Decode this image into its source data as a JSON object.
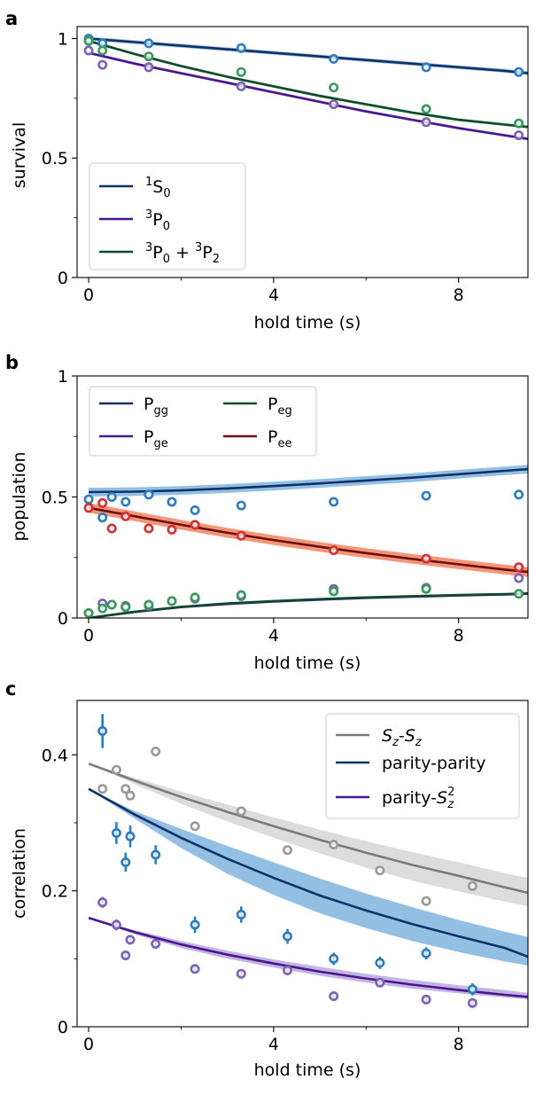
{
  "colors": {
    "S0": "#10306a",
    "P0": "#4b1590",
    "P0P2": "#0c4a2c",
    "Pgg": "#10306a",
    "Pge": "#4b1590",
    "Peg": "#0c4a2c",
    "Pee": "#6b0f10",
    "Pgg_marker": "#2e7cbf",
    "Pge_marker": "#7b63b3",
    "Peg_marker": "#3a9a5a",
    "Pee_marker": "#d63030",
    "S0_marker": "#2e7cbf",
    "P0_marker": "#7b63b3",
    "P0P2_marker": "#3a9a5a",
    "SzSz": "#7b7b7b",
    "pp": "#10306a",
    "pS2": "#4b1590",
    "SzSz_marker": "#9a9a9a",
    "pp_marker": "#2e7cbf",
    "pS2_marker": "#7b63b3",
    "Pee_band": "#f3825f",
    "Pgg_band": "#7fb4dd",
    "SzSz_band": "#d6d6d6",
    "pp_band": "#7fb4dd",
    "pS2_band": "#b8a8dc"
  },
  "chart_data": [
    {
      "panel_label": "a",
      "type": "line",
      "xlabel": "hold time (s)",
      "ylabel": "survival",
      "xlim": [
        -0.25,
        9.5
      ],
      "ylim": [
        0,
        1.05
      ],
      "xticks": [
        0,
        4,
        8
      ],
      "xticklabels": [
        "0",
        "4",
        "8"
      ],
      "xminor": [
        2,
        6
      ],
      "yticks": [
        0,
        0.5,
        1
      ],
      "yticklabels": [
        "0",
        "0.5",
        "1"
      ],
      "yminor": [
        0.25,
        0.75
      ],
      "legend": {
        "placement": "lower-left",
        "columns": 1
      },
      "series": [
        {
          "key": "S0",
          "legend_sup": "1",
          "legend_base": "S",
          "legend_sub": "0",
          "fit": {
            "x": [
              0,
              1,
              2,
              3,
              4,
              5,
              6,
              7,
              8,
              9,
              9.5
            ],
            "y": [
              1.0,
              0.985,
              0.97,
              0.955,
              0.94,
              0.925,
              0.91,
              0.895,
              0.88,
              0.865,
              0.855
            ]
          },
          "band": 0.008,
          "points": {
            "x": [
              0,
              0.3,
              1.3,
              3.3,
              5.3,
              7.3,
              9.3
            ],
            "y": [
              1.0,
              0.98,
              0.98,
              0.96,
              0.915,
              0.88,
              0.86
            ]
          }
        },
        {
          "key": "P0",
          "legend_sup": "3",
          "legend_base": "P",
          "legend_sub": "0",
          "fit": {
            "x": [
              0,
              1,
              2,
              3,
              4,
              5,
              6,
              7,
              8,
              9,
              9.5
            ],
            "y": [
              0.94,
              0.895,
              0.855,
              0.815,
              0.775,
              0.735,
              0.695,
              0.66,
              0.625,
              0.595,
              0.58
            ]
          },
          "band": 0.006,
          "points": {
            "x": [
              0,
              0.3,
              1.3,
              3.3,
              5.3,
              7.3,
              9.3
            ],
            "y": [
              0.95,
              0.89,
              0.88,
              0.8,
              0.725,
              0.65,
              0.595
            ]
          }
        },
        {
          "key": "P0P2",
          "legend_sup": "3",
          "legend_base": "P",
          "legend_sub": "0",
          "legend_plus": "+",
          "legend_sup2": "3",
          "legend_base2": "P",
          "legend_sub2": "2",
          "fit": {
            "x": [
              0,
              1,
              2,
              3,
              4,
              5,
              6,
              7,
              8,
              9,
              9.5
            ],
            "y": [
              0.99,
              0.935,
              0.885,
              0.84,
              0.8,
              0.76,
              0.725,
              0.69,
              0.66,
              0.64,
              0.63
            ]
          },
          "band": 0.006,
          "points": {
            "x": [
              0,
              0.3,
              1.3,
              3.3,
              5.3,
              7.3,
              9.3
            ],
            "y": [
              0.99,
              0.95,
              0.925,
              0.86,
              0.795,
              0.705,
              0.645
            ]
          }
        }
      ]
    },
    {
      "panel_label": "b",
      "type": "line",
      "xlabel": "hold time (s)",
      "ylabel": "population",
      "xlim": [
        -0.25,
        9.5
      ],
      "ylim": [
        0,
        1
      ],
      "xticks": [
        0,
        4,
        8
      ],
      "xticklabels": [
        "0",
        "4",
        "8"
      ],
      "xminor": [
        2,
        6
      ],
      "yticks": [
        0,
        0.5,
        1
      ],
      "yticklabels": [
        "0",
        "0.5",
        "1"
      ],
      "yminor": [
        0.25,
        0.75
      ],
      "legend": {
        "placement": "top-left",
        "columns": 2
      },
      "series": [
        {
          "key": "Pgg",
          "legend_base": "P",
          "legend_sub": "gg",
          "fit": {
            "x": [
              0,
              1,
              2,
              3,
              4,
              5,
              6,
              7,
              8,
              9,
              9.5
            ],
            "y": [
              0.52,
              0.522,
              0.527,
              0.535,
              0.545,
              0.556,
              0.568,
              0.58,
              0.594,
              0.608,
              0.615
            ]
          },
          "band": 0.018,
          "points": {
            "x": [
              0,
              0.3,
              0.5,
              0.8,
              1.3,
              1.8,
              2.3,
              3.3,
              5.3,
              7.3,
              9.3
            ],
            "y": [
              0.49,
              0.415,
              0.5,
              0.48,
              0.51,
              0.48,
              0.445,
              0.465,
              0.48,
              0.505,
              0.51
            ]
          }
        },
        {
          "key": "Pge",
          "legend_base": "P",
          "legend_sub": "ge",
          "fit": {
            "x": [
              0,
              1,
              2,
              3,
              4,
              5,
              6,
              7,
              8,
              9,
              9.5
            ],
            "y": [
              0,
              0.025,
              0.045,
              0.058,
              0.068,
              0.076,
              0.083,
              0.088,
              0.093,
              0.097,
              0.1
            ]
          },
          "band": 0.004,
          "points": {
            "x": [
              0,
              0.3,
              0.5,
              0.8,
              1.3,
              1.8,
              2.3,
              3.3,
              5.3,
              7.3,
              9.3
            ],
            "y": [
              0.02,
              0.06,
              0.055,
              0.05,
              0.05,
              0.07,
              0.08,
              0.09,
              0.12,
              0.125,
              0.165
            ]
          }
        },
        {
          "key": "Peg",
          "legend_base": "P",
          "legend_sub": "eg",
          "fit": {
            "x": [
              0,
              1,
              2,
              3,
              4,
              5,
              6,
              7,
              8,
              9,
              9.5
            ],
            "y": [
              0,
              0.026,
              0.046,
              0.06,
              0.07,
              0.078,
              0.085,
              0.09,
              0.095,
              0.099,
              0.102
            ]
          },
          "band": 0.004,
          "points": {
            "x": [
              0,
              0.3,
              0.5,
              0.8,
              1.3,
              1.8,
              2.3,
              3.3,
              5.3,
              7.3,
              9.3
            ],
            "y": [
              0.02,
              0.04,
              0.055,
              0.045,
              0.055,
              0.07,
              0.085,
              0.095,
              0.11,
              0.12,
              0.1
            ]
          }
        },
        {
          "key": "Pee",
          "legend_base": "P",
          "legend_sub": "ee",
          "fit": {
            "x": [
              0,
              1,
              2,
              3,
              4,
              5,
              6,
              7,
              8,
              9,
              9.5
            ],
            "y": [
              0.455,
              0.42,
              0.385,
              0.352,
              0.322,
              0.294,
              0.268,
              0.244,
              0.222,
              0.2,
              0.19
            ]
          },
          "band": 0.02,
          "points": {
            "x": [
              0,
              0.3,
              0.5,
              0.8,
              1.3,
              1.8,
              2.3,
              3.3,
              5.3,
              7.3,
              9.3
            ],
            "y": [
              0.455,
              0.475,
              0.37,
              0.42,
              0.37,
              0.365,
              0.385,
              0.34,
              0.28,
              0.245,
              0.21
            ]
          }
        }
      ]
    },
    {
      "panel_label": "c",
      "type": "line",
      "xlabel": "hold time (s)",
      "ylabel": "correlation",
      "xlim": [
        -0.25,
        9.5
      ],
      "ylim": [
        0,
        0.48
      ],
      "xticks": [
        0,
        4,
        8
      ],
      "xticklabels": [
        "0",
        "4",
        "8"
      ],
      "xminor": [
        2,
        6
      ],
      "yticks": [
        0,
        0.2,
        0.4
      ],
      "yticklabels": [
        "0",
        "0.2",
        "0.4"
      ],
      "yminor": [
        0.1,
        0.3
      ],
      "legend": {
        "placement": "top-right",
        "columns": 1
      },
      "series": [
        {
          "key": "SzSz",
          "legend_text": "S_z-S_z",
          "fit": {
            "x": [
              0,
              1,
              2,
              3,
              4,
              5,
              6,
              7,
              8,
              9,
              9.5
            ],
            "y": [
              0.387,
              0.362,
              0.338,
              0.316,
              0.295,
              0.275,
              0.256,
              0.238,
              0.222,
              0.205,
              0.197
            ]
          },
          "band_lo": [
            0.387,
            0.357,
            0.328,
            0.302,
            0.278,
            0.255,
            0.234,
            0.215,
            0.199,
            0.184,
            0.177
          ],
          "band_hi": [
            0.387,
            0.366,
            0.346,
            0.327,
            0.308,
            0.29,
            0.273,
            0.257,
            0.242,
            0.226,
            0.219
          ],
          "points": {
            "x": [
              0.3,
              0.6,
              0.8,
              0.9,
              1.45,
              2.3,
              3.3,
              4.3,
              5.3,
              6.3,
              7.3,
              8.3
            ],
            "y": [
              0.35,
              0.378,
              0.35,
              0.34,
              0.405,
              0.295,
              0.317,
              0.26,
              0.268,
              0.23,
              0.185,
              0.207
            ]
          }
        },
        {
          "key": "pp",
          "legend_text": "parity-parity",
          "fit": {
            "x": [
              0,
              1,
              2,
              3,
              4,
              5,
              6,
              7,
              8,
              9,
              9.5
            ],
            "y": [
              0.35,
              0.312,
              0.278,
              0.247,
              0.219,
              0.193,
              0.171,
              0.151,
              0.133,
              0.116,
              0.103
            ]
          },
          "band_lo": [
            0.35,
            0.306,
            0.263,
            0.225,
            0.194,
            0.167,
            0.145,
            0.126,
            0.11,
            0.096,
            0.09
          ],
          "band_hi": [
            0.35,
            0.317,
            0.291,
            0.266,
            0.242,
            0.218,
            0.196,
            0.176,
            0.157,
            0.14,
            0.132
          ],
          "points": {
            "x": [
              0.3,
              0.6,
              0.8,
              0.9,
              1.45,
              2.3,
              3.3,
              4.3,
              5.3,
              6.3,
              7.3,
              8.3
            ],
            "y": [
              0.435,
              0.285,
              0.242,
              0.28,
              0.253,
              0.15,
              0.165,
              0.133,
              0.1,
              0.094,
              0.108,
              0.055
            ]
          },
          "errors": [
            0.025,
            0.016,
            0.014,
            0.016,
            0.014,
            0.012,
            0.012,
            0.011,
            0.009,
            0.009,
            0.009,
            0.009
          ]
        },
        {
          "key": "pS2",
          "legend_text": "parity-S_z^2",
          "fit": {
            "x": [
              0,
              1,
              2,
              3,
              4,
              5,
              6,
              7,
              8,
              9,
              9.5
            ],
            "y": [
              0.16,
              0.139,
              0.121,
              0.106,
              0.093,
              0.081,
              0.071,
              0.062,
              0.054,
              0.047,
              0.044
            ]
          },
          "band_lo": [
            0.16,
            0.136,
            0.116,
            0.1,
            0.087,
            0.075,
            0.065,
            0.056,
            0.049,
            0.043,
            0.04
          ],
          "band_hi": [
            0.16,
            0.142,
            0.126,
            0.112,
            0.099,
            0.088,
            0.078,
            0.069,
            0.061,
            0.054,
            0.05
          ],
          "points": {
            "x": [
              0.3,
              0.6,
              0.8,
              0.9,
              1.45,
              2.3,
              3.3,
              4.3,
              5.3,
              6.3,
              7.3,
              8.3
            ],
            "y": [
              0.183,
              0.15,
              0.105,
              0.128,
              0.122,
              0.085,
              0.078,
              0.083,
              0.045,
              0.065,
              0.04,
              0.035
            ]
          },
          "errors": [
            0.008,
            0.008,
            0.007,
            0.007,
            0.007,
            0.006,
            0.006,
            0.006,
            0.005,
            0.005,
            0.005,
            0.005
          ]
        }
      ]
    }
  ]
}
